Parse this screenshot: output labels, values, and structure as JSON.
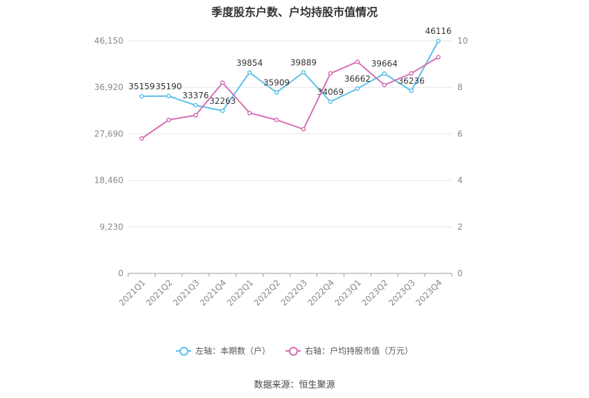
{
  "chart_data": {
    "type": "line",
    "title": "季度股东户数、户均持股市值情况",
    "categories": [
      "2021Q1",
      "2021Q2",
      "2021Q3",
      "2021Q4",
      "2022Q1",
      "2022Q2",
      "2022Q3",
      "2022Q4",
      "2023Q1",
      "2023Q2",
      "2023Q3",
      "2023Q4"
    ],
    "left_axis": {
      "ticks": [
        "0",
        "9,230",
        "18,460",
        "27,690",
        "36,920",
        "46,150"
      ],
      "min": 0,
      "max": 46150
    },
    "right_axis": {
      "ticks": [
        "0",
        "2",
        "4",
        "6",
        "8",
        "10"
      ],
      "min": 0,
      "max": 10
    },
    "series": [
      {
        "name": "左轴：本期数（户）",
        "axis": "left",
        "color": "#5bc0eb",
        "values": [
          35159,
          35190,
          33376,
          32263,
          39854,
          35909,
          39889,
          34069,
          36662,
          39664,
          36236,
          46116
        ],
        "labels": [
          "35159",
          "35190",
          "33376",
          "32263",
          "39854",
          "35909",
          "39889",
          "34069",
          "36662",
          "39664",
          "36236",
          "46116"
        ]
      },
      {
        "name": "右轴：户均持股市值（万元）",
        "axis": "right",
        "color": "#d36fb5",
        "values": [
          5.8,
          6.6,
          6.8,
          8.2,
          6.9,
          6.6,
          6.2,
          8.6,
          9.1,
          8.1,
          8.6,
          9.3
        ]
      }
    ],
    "grid": true,
    "legend_position": "bottom"
  },
  "source": "数据来源：恒生聚源"
}
